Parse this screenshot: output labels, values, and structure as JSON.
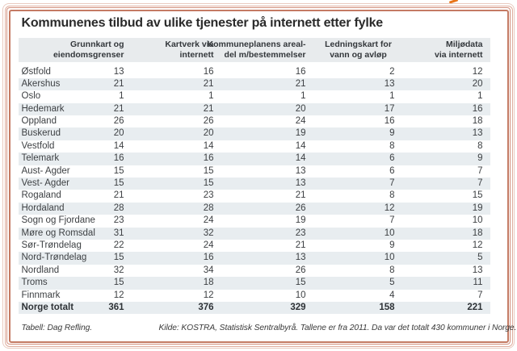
{
  "title": "Kommunenes tilbud av ulike tjenester på internett etter fylke",
  "table": {
    "column_headers": [
      {
        "line1": "Grunnkart og",
        "line2": "eiendomsgrenser"
      },
      {
        "line1": "Kartverk via",
        "line2": "internett"
      },
      {
        "line1": "Kommuneplanens areal-",
        "line2": "del m/bestemmelser"
      },
      {
        "line1": "Ledningskart for",
        "line2": "vann og avløp"
      },
      {
        "line1": "Miljødata",
        "line2": "via internett"
      }
    ],
    "rows": [
      {
        "fylke": "Østfold",
        "values": [
          13,
          16,
          16,
          2,
          12
        ]
      },
      {
        "fylke": "Akershus",
        "values": [
          21,
          21,
          21,
          13,
          20
        ]
      },
      {
        "fylke": "Oslo",
        "values": [
          1,
          1,
          1,
          1,
          1
        ]
      },
      {
        "fylke": "Hedemark",
        "values": [
          21,
          21,
          20,
          17,
          16
        ]
      },
      {
        "fylke": "Oppland",
        "values": [
          26,
          26,
          24,
          16,
          18
        ]
      },
      {
        "fylke": "Buskerud",
        "values": [
          20,
          20,
          19,
          9,
          13
        ]
      },
      {
        "fylke": "Vestfold",
        "values": [
          14,
          14,
          14,
          8,
          8
        ]
      },
      {
        "fylke": "Telemark",
        "values": [
          16,
          16,
          14,
          6,
          9
        ]
      },
      {
        "fylke": "Aust- Agder",
        "values": [
          15,
          15,
          13,
          6,
          7
        ]
      },
      {
        "fylke": "Vest- Agder",
        "values": [
          15,
          15,
          13,
          7,
          7
        ]
      },
      {
        "fylke": "Rogaland",
        "values": [
          21,
          23,
          21,
          8,
          15
        ]
      },
      {
        "fylke": "Hordaland",
        "values": [
          28,
          28,
          26,
          12,
          19
        ]
      },
      {
        "fylke": "Sogn og Fjordane",
        "values": [
          23,
          24,
          19,
          7,
          10
        ]
      },
      {
        "fylke": "Møre og Romsdal",
        "values": [
          31,
          32,
          23,
          10,
          18
        ]
      },
      {
        "fylke": "Sør-Trøndelag",
        "values": [
          22,
          24,
          21,
          9,
          12
        ]
      },
      {
        "fylke": "Nord-Trøndelag",
        "values": [
          15,
          16,
          13,
          10,
          5
        ]
      },
      {
        "fylke": "Nordland",
        "values": [
          32,
          34,
          26,
          8,
          13
        ]
      },
      {
        "fylke": "Troms",
        "values": [
          15,
          18,
          15,
          5,
          11
        ]
      },
      {
        "fylke": "Finnmark",
        "values": [
          12,
          12,
          10,
          4,
          7
        ]
      }
    ],
    "total_row": {
      "fylke": "Norge totalt",
      "values": [
        361,
        376,
        329,
        158,
        221
      ]
    }
  },
  "footer": {
    "credit": "Tabell: Dag Refling.",
    "source": "Kilde: KOSTRA, Statistisk Sentralbyrå. Tallene er fra 2011. Da var det totalt 430 kommuner i Norge."
  },
  "colors": {
    "frame_line_1": "#e9cbc0",
    "frame_line_2": "#dfae9e",
    "frame_line_3": "#d2907d",
    "frame_line_4": "#c47a63",
    "header_band": "#e8ebed",
    "stripe": "#e8edf0",
    "artifact_orange": "#e8751a"
  }
}
